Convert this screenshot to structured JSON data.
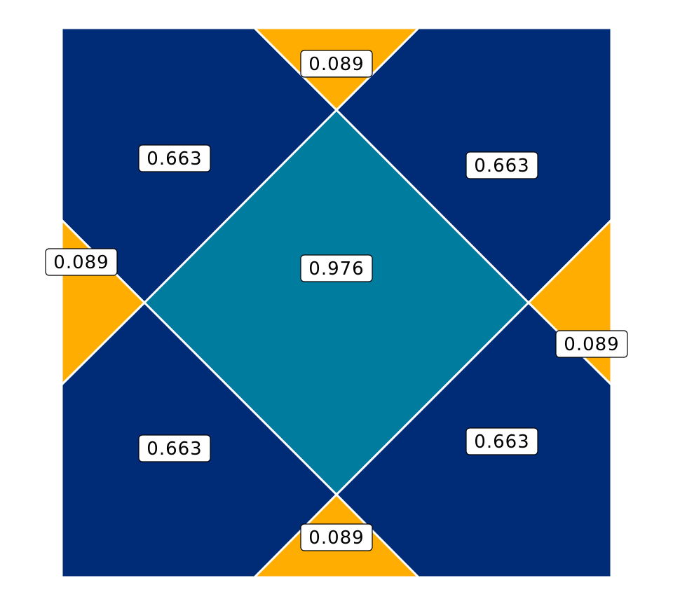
{
  "colors": {
    "center": "#007C9F",
    "mid": "#002B76",
    "corner": "#FFAD00",
    "background": "#ffffff",
    "border": "#ffffff"
  },
  "regions": [
    {
      "id": "center",
      "group": "center",
      "label": "0.976"
    },
    {
      "id": "tl",
      "group": "mid",
      "label": "0.663"
    },
    {
      "id": "tr",
      "group": "mid",
      "label": "0.663"
    },
    {
      "id": "bl",
      "group": "mid",
      "label": "0.663"
    },
    {
      "id": "br",
      "group": "mid",
      "label": "0.663"
    },
    {
      "id": "top",
      "group": "corner",
      "label": "0.089"
    },
    {
      "id": "left",
      "group": "corner",
      "label": "0.089"
    },
    {
      "id": "right",
      "group": "corner",
      "label": "0.089"
    },
    {
      "id": "bottom",
      "group": "corner",
      "label": "0.089"
    }
  ]
}
